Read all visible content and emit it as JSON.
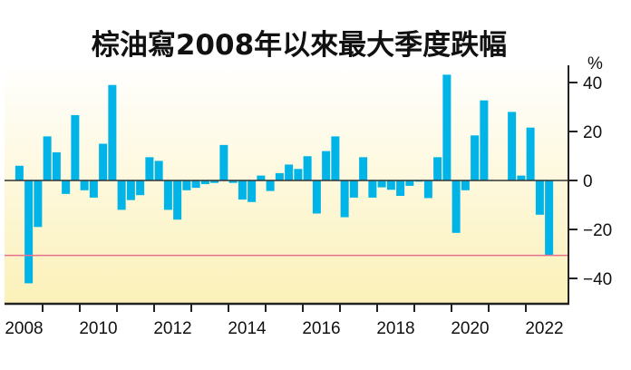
{
  "chart_data": {
    "type": "bar",
    "title": "棕油寫2008年以來最大季度跌幅",
    "ylabel": "%",
    "ylim": [
      -50,
      45
    ],
    "yticks": [
      40,
      20,
      0,
      -20,
      -40
    ],
    "ytick_labels": [
      "40",
      "20",
      "0",
      "−20",
      "−40"
    ],
    "xtick_labels": [
      "2008",
      "2010",
      "2012",
      "2014",
      "2016",
      "2018",
      "2020",
      "2022"
    ],
    "x_start": "2008 Q2",
    "x_end": "2022 Q3",
    "frequency": "quarterly",
    "reference_line": -30.6,
    "values": [
      6,
      -42,
      -19,
      18,
      11.5,
      -5.5,
      26.7,
      -4,
      -7,
      15,
      39,
      -12,
      -8,
      -6,
      9.5,
      8,
      -12,
      -16,
      -4,
      -3,
      -1.5,
      -1,
      14.5,
      -1,
      -7.8,
      -8.8,
      2,
      -4.3,
      3,
      6.5,
      4.7,
      9.9,
      -13.5,
      12,
      18,
      -15,
      -7,
      9.5,
      -7,
      -2.8,
      -3.8,
      -6.3,
      -2.2,
      -0.5,
      -7.2,
      9.5,
      43.2,
      -21.4,
      -4,
      18.4,
      32.7,
      0,
      0,
      28,
      2,
      21.6,
      -14,
      -30.6
    ],
    "colors": {
      "bar": "#00b4e8",
      "reference_line": "#e8708e",
      "bg_top": "#ffffff",
      "bg_bottom": "#fbf1b8"
    }
  }
}
